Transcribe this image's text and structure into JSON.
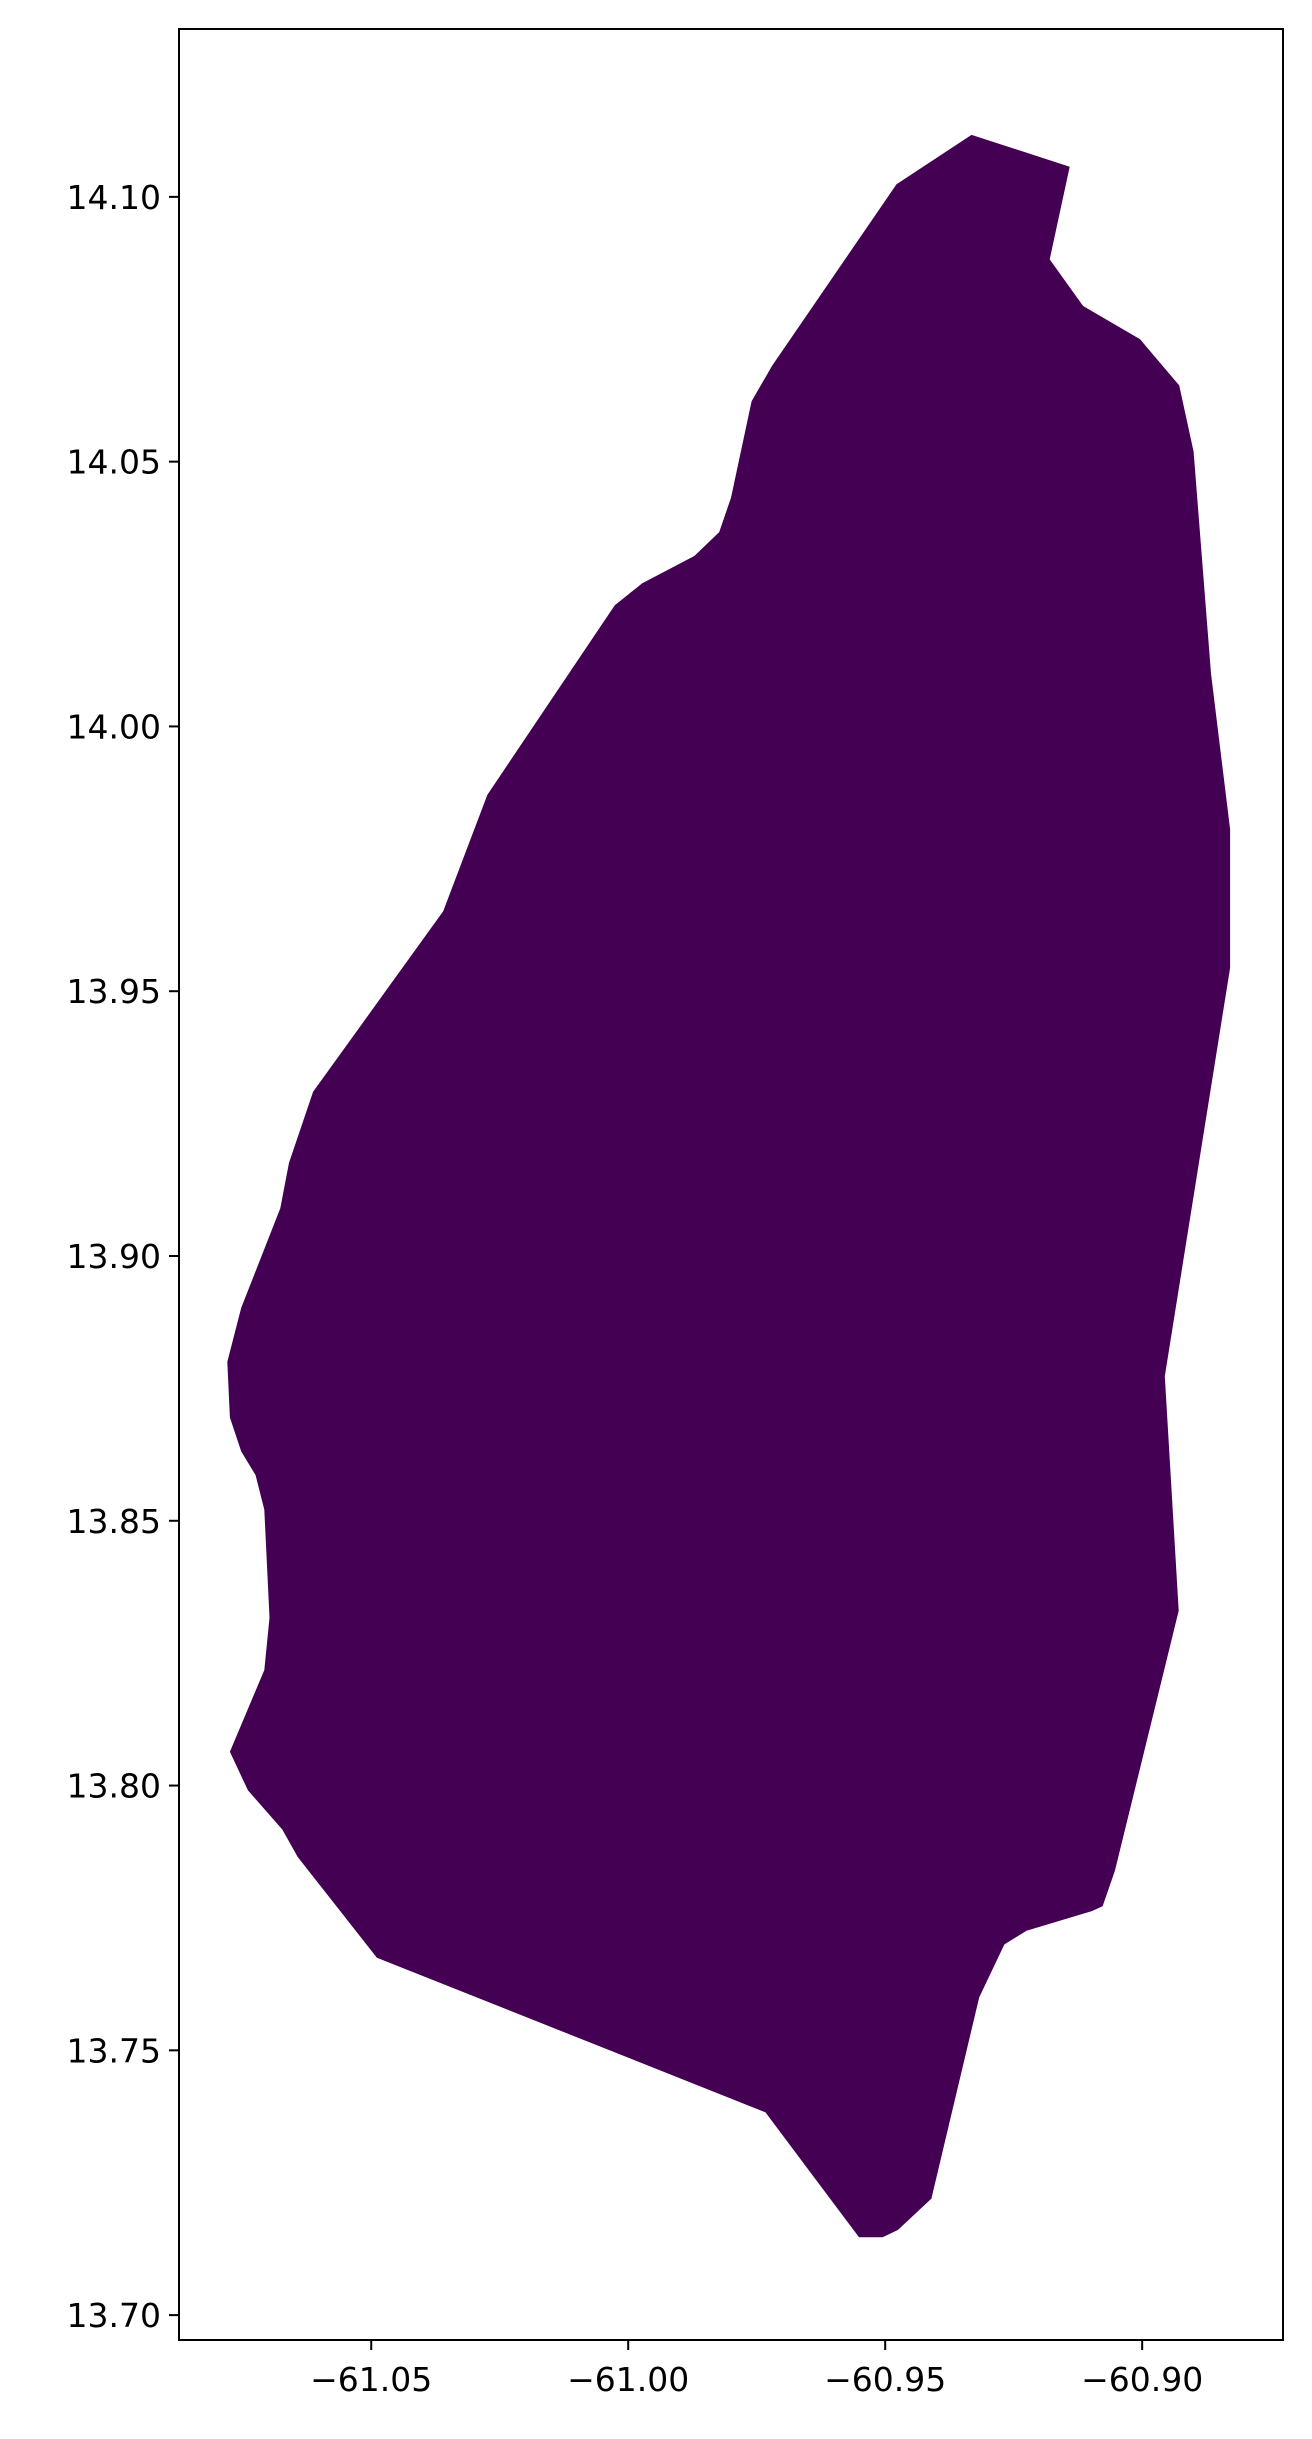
{
  "chart_data": {
    "type": "map",
    "title": "",
    "xlabel": "",
    "ylabel": "",
    "xlim": [
      -61.0874,
      -60.8726
    ],
    "ylim": [
      13.6953,
      14.1317
    ],
    "grid": false,
    "x_ticks": [
      {
        "value": -61.05,
        "label": "−61.05"
      },
      {
        "value": -61.0,
        "label": "−61.00"
      },
      {
        "value": -60.95,
        "label": "−60.95"
      },
      {
        "value": -60.9,
        "label": "−60.90"
      }
    ],
    "y_ticks": [
      {
        "value": 13.7,
        "label": "13.70"
      },
      {
        "value": 13.75,
        "label": "13.75"
      },
      {
        "value": 13.8,
        "label": "13.80"
      },
      {
        "value": 13.85,
        "label": "13.85"
      },
      {
        "value": 13.9,
        "label": "13.90"
      },
      {
        "value": 13.95,
        "label": "13.95"
      },
      {
        "value": 14.0,
        "label": "14.00"
      },
      {
        "value": 14.05,
        "label": "14.05"
      },
      {
        "value": 14.1,
        "label": "14.10"
      }
    ],
    "polygons": [
      {
        "fill": "#440154",
        "coordinates": [
          [
            -60.9332,
            14.1117
          ],
          [
            -60.9141,
            14.1057
          ],
          [
            -60.918,
            14.0882
          ],
          [
            -60.9115,
            14.0794
          ],
          [
            -60.9004,
            14.0731
          ],
          [
            -60.8928,
            14.0644
          ],
          [
            -60.89,
            14.0519
          ],
          [
            -60.8866,
            14.01
          ],
          [
            -60.8829,
            13.9806
          ],
          [
            -60.8829,
            13.9544
          ],
          [
            -60.8956,
            13.8773
          ],
          [
            -60.8929,
            13.833
          ],
          [
            -60.9053,
            13.7839
          ],
          [
            -60.9077,
            13.7772
          ],
          [
            -60.9098,
            13.7763
          ],
          [
            -60.9225,
            13.7726
          ],
          [
            -60.9268,
            13.77
          ],
          [
            -60.9317,
            13.76
          ],
          [
            -60.941,
            13.722
          ],
          [
            -60.9475,
            13.7161
          ],
          [
            -60.9505,
            13.7147
          ],
          [
            -60.9551,
            13.7147
          ],
          [
            -60.9733,
            13.7383
          ],
          [
            -61.0489,
            13.7675
          ],
          [
            -61.0643,
            13.7865
          ],
          [
            -61.0673,
            13.7917
          ],
          [
            -61.074,
            13.7991
          ],
          [
            -61.0775,
            13.8064
          ],
          [
            -61.0708,
            13.8218
          ],
          [
            -61.0698,
            13.8317
          ],
          [
            -61.0708,
            13.8521
          ],
          [
            -61.0725,
            13.8586
          ],
          [
            -61.0753,
            13.8631
          ],
          [
            -61.0775,
            13.8695
          ],
          [
            -61.078,
            13.88
          ],
          [
            -61.0753,
            13.8902
          ],
          [
            -61.0677,
            13.909
          ],
          [
            -61.066,
            13.9176
          ],
          [
            -61.0613,
            13.931
          ],
          [
            -61.036,
            13.9651
          ],
          [
            -61.0274,
            13.9871
          ],
          [
            -61.0026,
            14.0229
          ],
          [
            -60.9973,
            14.027
          ],
          [
            -60.9871,
            14.0322
          ],
          [
            -60.9823,
            14.0367
          ],
          [
            -60.98,
            14.0432
          ],
          [
            -60.976,
            14.0614
          ],
          [
            -60.972,
            14.0681
          ],
          [
            -60.9478,
            14.1024
          ]
        ]
      }
    ]
  }
}
